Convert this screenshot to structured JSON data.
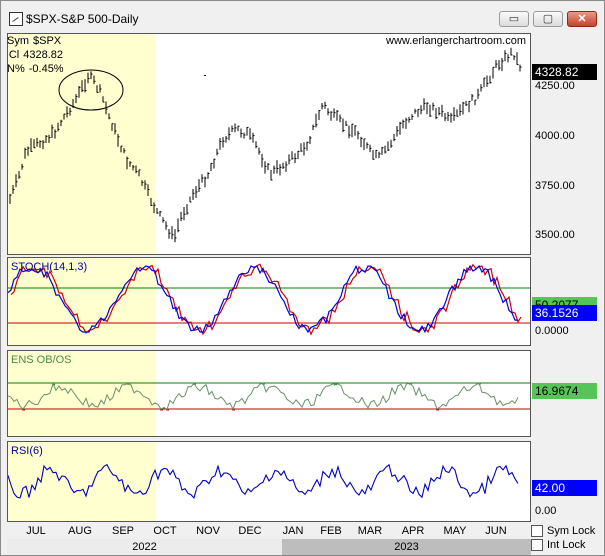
{
  "window": {
    "title": "$SPX-S&P 500-Daily",
    "buttons": {
      "minimize": "▭",
      "restore": "▢",
      "close": "✕"
    }
  },
  "info": {
    "sym_key": "Sym",
    "sym_val": "$SPX",
    "cl_key": "Cl",
    "cl_val": "4328.82",
    "pct_key": "N%",
    "pct_val": "-0.45%"
  },
  "watermark": "www.erlangerchartroom.com",
  "price_panel": {
    "y_labels": [
      "4250.00",
      "4000.00",
      "3750.00",
      "3500.00"
    ],
    "last_value": "4328.82"
  },
  "stoch_panel": {
    "label": "STOCH(14,1,3)",
    "value1": "50.2077",
    "value2": "36.1526",
    "zero_label": "0.0000"
  },
  "ens_panel": {
    "label": "ENS OB/OS",
    "value": "16.9674"
  },
  "rsi_panel": {
    "label": "RSI(6)",
    "value": "42.00",
    "zero_label": "0.00"
  },
  "x_axis": {
    "months": [
      "JUL",
      "AUG",
      "SEP",
      "OCT",
      "NOV",
      "DEC",
      "JAN",
      "FEB",
      "MAR",
      "APR",
      "MAY",
      "JUN"
    ],
    "years": [
      "2022",
      "2023"
    ]
  },
  "locks": {
    "sym_lock": "Sym Lock",
    "int_lock": "Int Lock"
  },
  "colors": {
    "highlight": "#ffffd0",
    "price_bars": "#000000",
    "stoch_k": "#0000e0",
    "stoch_d": "#d00000",
    "ob_line": "#008000",
    "os_line": "#c00000",
    "ens_line": "#6a8f6a",
    "rsi_line": "#0000c0",
    "value_green": "#56c456",
    "value_blue": "#0000ff"
  }
}
